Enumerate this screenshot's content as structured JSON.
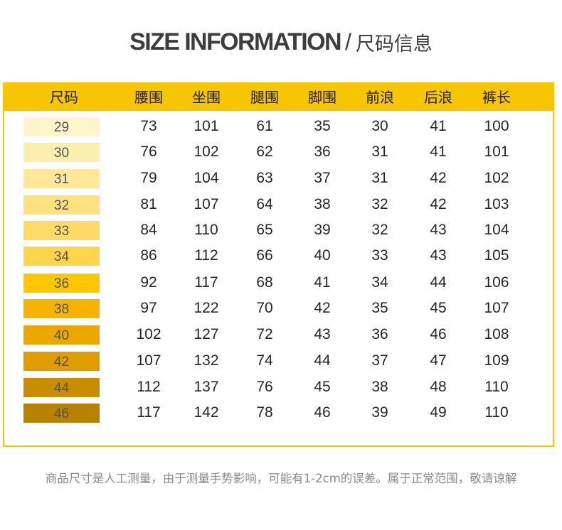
{
  "title": {
    "english": "SIZE INFORMATION",
    "slash": "/",
    "chinese": "尺码信息"
  },
  "table": {
    "headers": [
      "尺码",
      "腰围",
      "坐围",
      "腿围",
      "脚围",
      "前浪",
      "后浪",
      "裤长"
    ],
    "rows": [
      {
        "size": "29",
        "color": "#fff5cc",
        "values": [
          "73",
          "101",
          "61",
          "35",
          "30",
          "41",
          "100"
        ]
      },
      {
        "size": "30",
        "color": "#ffefae",
        "values": [
          "76",
          "102",
          "62",
          "36",
          "31",
          "41",
          "101"
        ]
      },
      {
        "size": "31",
        "color": "#ffe899",
        "values": [
          "79",
          "104",
          "63",
          "37",
          "31",
          "42",
          "102"
        ]
      },
      {
        "size": "32",
        "color": "#ffe27e",
        "values": [
          "81",
          "107",
          "64",
          "38",
          "32",
          "42",
          "103"
        ]
      },
      {
        "size": "33",
        "color": "#ffdb66",
        "values": [
          "84",
          "110",
          "65",
          "39",
          "32",
          "43",
          "104"
        ]
      },
      {
        "size": "34",
        "color": "#ffd54b",
        "values": [
          "86",
          "112",
          "66",
          "40",
          "33",
          "43",
          "105"
        ]
      },
      {
        "size": "36",
        "color": "#fdc800",
        "values": [
          "92",
          "117",
          "68",
          "41",
          "34",
          "44",
          "106"
        ]
      },
      {
        "size": "38",
        "color": "#f6b400",
        "values": [
          "97",
          "122",
          "70",
          "42",
          "35",
          "45",
          "107"
        ]
      },
      {
        "size": "40",
        "color": "#eaa800",
        "values": [
          "102",
          "127",
          "72",
          "43",
          "36",
          "46",
          "108"
        ]
      },
      {
        "size": "42",
        "color": "#df9d00",
        "values": [
          "107",
          "132",
          "74",
          "44",
          "37",
          "47",
          "109"
        ]
      },
      {
        "size": "44",
        "color": "#c98e00",
        "values": [
          "112",
          "137",
          "76",
          "45",
          "38",
          "48",
          "110"
        ]
      },
      {
        "size": "46",
        "color": "#b78200",
        "values": [
          "117",
          "142",
          "78",
          "46",
          "39",
          "49",
          "110"
        ]
      }
    ]
  },
  "note": "商品尺寸是人工测量，由于测量手势影响，可能有1-2cm的误差。属于正常范围，敬请谅解",
  "colors": {
    "accent": "#f7c600",
    "title_text": "#3d3d3d",
    "note_text": "#8a8a8a"
  }
}
